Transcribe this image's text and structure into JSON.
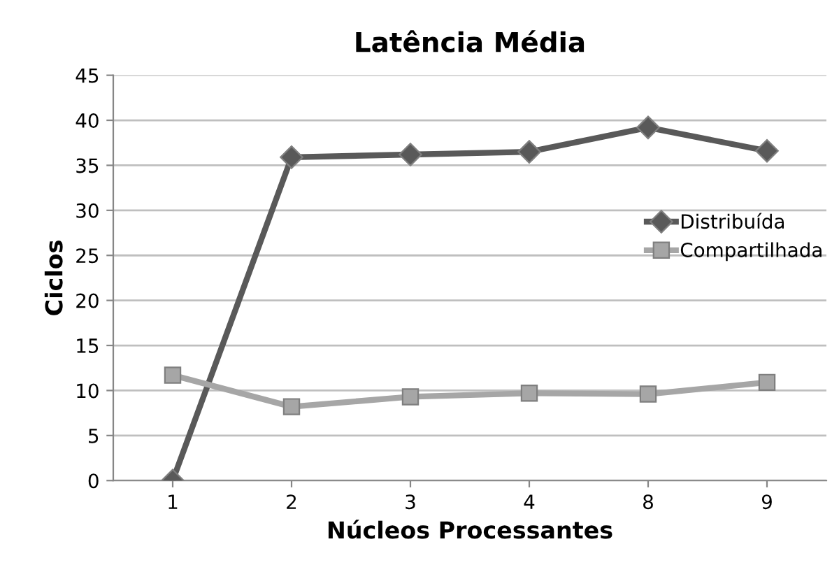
{
  "chart_data": {
    "type": "line",
    "title": "Latência Média",
    "xlabel": "Núcleos Processantes",
    "ylabel": "Ciclos",
    "categories": [
      "1",
      "2",
      "3",
      "4",
      "8",
      "9"
    ],
    "series": [
      {
        "name": "Distribuída",
        "color": "#595959",
        "marker": "diamond",
        "values": [
          0,
          35.9,
          36.2,
          36.5,
          39.2,
          36.6
        ]
      },
      {
        "name": "Compartilhada",
        "color": "#a6a6a6",
        "marker": "square",
        "values": [
          11.7,
          8.2,
          9.3,
          9.7,
          9.6,
          10.9
        ]
      }
    ],
    "ylim": [
      0,
      45
    ],
    "yticks": [
      0,
      5,
      10,
      15,
      20,
      25,
      30,
      35,
      40,
      45
    ],
    "grid": "y",
    "legend": "right"
  }
}
